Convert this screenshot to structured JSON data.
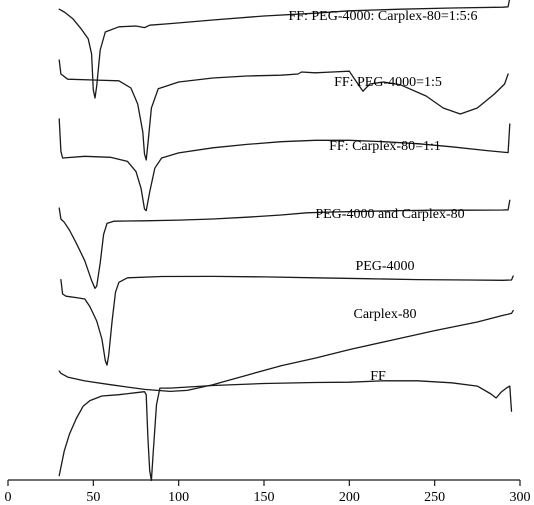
{
  "chart_data": {
    "type": "line",
    "title": "",
    "xlabel": "",
    "ylabel": "",
    "xlim": [
      0,
      300
    ],
    "x_ticks": [
      0,
      50,
      100,
      150,
      200,
      250,
      300
    ],
    "grid": false,
    "series": [
      {
        "name": "FF: PEG-4000: Carplex-80=1:5:6",
        "points": [
          [
            30,
            0.82
          ],
          [
            33,
            0.75
          ],
          [
            38,
            0.58
          ],
          [
            43,
            0.32
          ],
          [
            47,
            0.08
          ],
          [
            49,
            -0.3
          ],
          [
            50,
            -1.2
          ],
          [
            51,
            -1.4
          ],
          [
            52,
            -1.1
          ],
          [
            54,
            -0.2
          ],
          [
            57,
            0.25
          ],
          [
            65,
            0.38
          ],
          [
            75,
            0.4
          ],
          [
            80,
            0.36
          ],
          [
            83,
            0.42
          ],
          [
            95,
            0.46
          ],
          [
            120,
            0.55
          ],
          [
            150,
            0.65
          ],
          [
            180,
            0.72
          ],
          [
            200,
            0.78
          ],
          [
            230,
            0.82
          ],
          [
            260,
            0.85
          ],
          [
            290,
            0.87
          ],
          [
            293,
            0.88
          ],
          [
            294,
            1.1
          ]
        ]
      },
      {
        "name": "FF: PEG-4000=1:5",
        "points": [
          [
            30,
            0.9
          ],
          [
            31,
            0.55
          ],
          [
            35,
            0.42
          ],
          [
            50,
            0.4
          ],
          [
            65,
            0.38
          ],
          [
            72,
            0.2
          ],
          [
            76,
            -0.2
          ],
          [
            79,
            -0.9
          ],
          [
            80,
            -1.45
          ],
          [
            81,
            -1.6
          ],
          [
            82,
            -1.2
          ],
          [
            84,
            -0.3
          ],
          [
            88,
            0.18
          ],
          [
            100,
            0.35
          ],
          [
            120,
            0.45
          ],
          [
            140,
            0.5
          ],
          [
            160,
            0.52
          ],
          [
            170,
            0.55
          ],
          [
            172,
            0.6
          ],
          [
            180,
            0.58
          ],
          [
            190,
            0.6
          ],
          [
            200,
            0.62
          ],
          [
            205,
            0.3
          ],
          [
            208,
            0.12
          ],
          [
            212,
            0.3
          ],
          [
            220,
            0.35
          ],
          [
            230,
            0.28
          ],
          [
            245,
            0.0
          ],
          [
            255,
            -0.3
          ],
          [
            265,
            -0.45
          ],
          [
            275,
            -0.3
          ],
          [
            285,
            0.05
          ],
          [
            291,
            0.3
          ],
          [
            293,
            0.55
          ]
        ]
      },
      {
        "name": "FF: Carplex-80=1:1",
        "points": [
          [
            30,
            1.15
          ],
          [
            31,
            0.2
          ],
          [
            32,
            0.0
          ],
          [
            45,
            0.05
          ],
          [
            60,
            0.02
          ],
          [
            70,
            -0.1
          ],
          [
            75,
            -0.4
          ],
          [
            78,
            -0.9
          ],
          [
            80,
            -1.5
          ],
          [
            81,
            -1.55
          ],
          [
            83,
            -1.0
          ],
          [
            86,
            -0.3
          ],
          [
            90,
            0.0
          ],
          [
            100,
            0.15
          ],
          [
            120,
            0.3
          ],
          [
            140,
            0.4
          ],
          [
            160,
            0.48
          ],
          [
            180,
            0.52
          ],
          [
            200,
            0.52
          ],
          [
            220,
            0.48
          ],
          [
            240,
            0.42
          ],
          [
            260,
            0.33
          ],
          [
            280,
            0.22
          ],
          [
            293,
            0.16
          ],
          [
            294,
            1.0
          ]
        ]
      },
      {
        "name": "PEG-4000 and Carplex-80",
        "points": [
          [
            30,
            1.0
          ],
          [
            31,
            0.5
          ],
          [
            33,
            0.35
          ],
          [
            36,
            0.0
          ],
          [
            40,
            -0.6
          ],
          [
            45,
            -1.4
          ],
          [
            49,
            -2.3
          ],
          [
            51,
            -2.65
          ],
          [
            52,
            -2.55
          ],
          [
            54,
            -1.5
          ],
          [
            56,
            -0.2
          ],
          [
            58,
            0.3
          ],
          [
            62,
            0.4
          ],
          [
            80,
            0.42
          ],
          [
            100,
            0.45
          ],
          [
            120,
            0.5
          ],
          [
            140,
            0.58
          ],
          [
            160,
            0.68
          ],
          [
            175,
            0.78
          ],
          [
            190,
            0.82
          ],
          [
            210,
            0.85
          ],
          [
            230,
            0.88
          ],
          [
            250,
            0.9
          ],
          [
            270,
            0.9
          ],
          [
            290,
            0.91
          ],
          [
            293,
            0.92
          ],
          [
            294,
            1.35
          ]
        ]
      },
      {
        "name": "PEG-4000",
        "points": [
          [
            31,
            0.3
          ],
          [
            32,
            -0.5
          ],
          [
            34,
            -0.62
          ],
          [
            40,
            -0.7
          ],
          [
            45,
            -0.78
          ],
          [
            48,
            -1.2
          ],
          [
            52,
            -2.0
          ],
          [
            55,
            -3.0
          ],
          [
            57,
            -4.2
          ],
          [
            58,
            -4.45
          ],
          [
            59,
            -3.9
          ],
          [
            61,
            -2.0
          ],
          [
            63,
            -0.4
          ],
          [
            65,
            0.15
          ],
          [
            70,
            0.4
          ],
          [
            90,
            0.47
          ],
          [
            120,
            0.48
          ],
          [
            150,
            0.45
          ],
          [
            180,
            0.4
          ],
          [
            210,
            0.35
          ],
          [
            240,
            0.3
          ],
          [
            270,
            0.28
          ],
          [
            290,
            0.26
          ],
          [
            295,
            0.28
          ],
          [
            296,
            0.5
          ]
        ]
      },
      {
        "name": "Carplex-80",
        "points": [
          [
            30,
            0.42
          ],
          [
            31,
            0.3
          ],
          [
            35,
            0.1
          ],
          [
            45,
            -0.1
          ],
          [
            60,
            -0.3
          ],
          [
            80,
            -0.55
          ],
          [
            95,
            -0.65
          ],
          [
            105,
            -0.6
          ],
          [
            120,
            -0.3
          ],
          [
            140,
            0.2
          ],
          [
            160,
            0.7
          ],
          [
            180,
            1.1
          ],
          [
            200,
            1.55
          ],
          [
            225,
            2.05
          ],
          [
            250,
            2.55
          ],
          [
            275,
            3.0
          ],
          [
            290,
            3.35
          ],
          [
            295,
            3.45
          ],
          [
            296,
            3.6
          ]
        ]
      },
      {
        "name": "FF",
        "points": [
          [
            30,
            -2.35
          ],
          [
            33,
            -1.6
          ],
          [
            36,
            -1.1
          ],
          [
            40,
            -0.62
          ],
          [
            44,
            -0.25
          ],
          [
            48,
            -0.08
          ],
          [
            55,
            0.06
          ],
          [
            65,
            0.1
          ],
          [
            75,
            0.16
          ],
          [
            80,
            0.19
          ],
          [
            81,
            0.1
          ],
          [
            82,
            -1.2
          ],
          [
            83,
            -2.2
          ],
          [
            84,
            -2.5
          ],
          [
            85,
            -1.7
          ],
          [
            87,
            -0.2
          ],
          [
            89,
            0.3
          ],
          [
            95,
            0.3
          ],
          [
            120,
            0.38
          ],
          [
            150,
            0.44
          ],
          [
            180,
            0.47
          ],
          [
            200,
            0.48
          ],
          [
            220,
            0.52
          ],
          [
            240,
            0.52
          ],
          [
            260,
            0.46
          ],
          [
            275,
            0.36
          ],
          [
            283,
            0.12
          ],
          [
            286,
            0.0
          ],
          [
            289,
            0.18
          ],
          [
            292,
            0.3
          ],
          [
            294,
            0.36
          ],
          [
            295,
            -0.4
          ]
        ]
      }
    ]
  }
}
